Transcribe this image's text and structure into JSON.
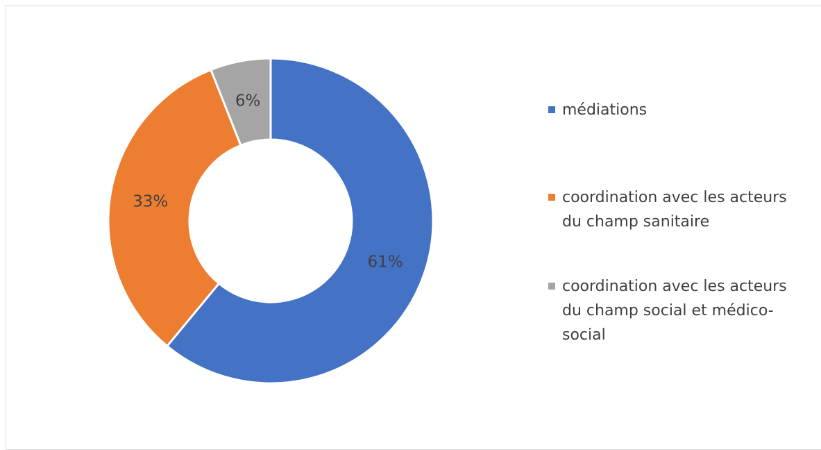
{
  "chart_data": {
    "type": "pie",
    "variant": "donut",
    "title": "",
    "categories": [
      "médiations",
      "coordination avec les acteurs du champ sanitaire",
      "coordination avec les acteurs du champ social et médico-social"
    ],
    "values": [
      61,
      33,
      6
    ],
    "labels": [
      "61%",
      "33%",
      "6%"
    ],
    "colors": [
      "#4472C4",
      "#ED7D31",
      "#A5A5A5"
    ],
    "legend": {
      "position": "right",
      "entries": [
        {
          "label": "médiations",
          "lines": [
            "médiations"
          ],
          "color": "#4472C4"
        },
        {
          "label": "coordination avec les acteurs du champ sanitaire",
          "lines": [
            "coordination avec les acteurs",
            "du champ sanitaire"
          ],
          "color": "#ED7D31"
        },
        {
          "label": "coordination avec les acteurs du champ social et médico-social",
          "lines": [
            "coordination avec les acteurs",
            "du champ social et médico-",
            "social"
          ],
          "color": "#A5A5A5"
        }
      ]
    }
  }
}
